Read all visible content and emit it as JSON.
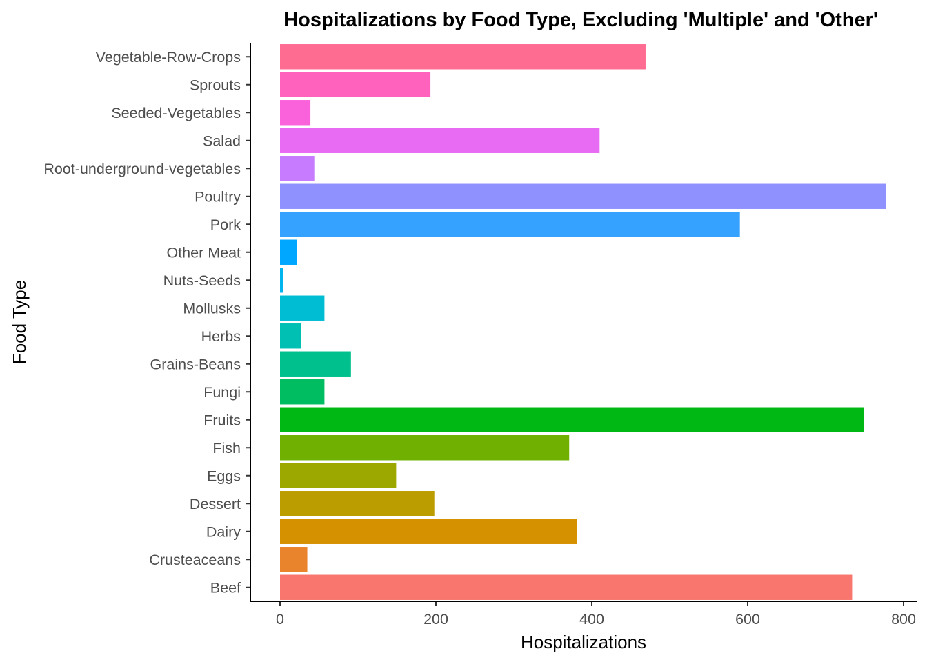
{
  "chart_data": {
    "type": "bar",
    "orientation": "horizontal",
    "title": "Hospitalizations by Food Type, Excluding 'Multiple' and 'Other'",
    "xlabel": "Hospitalizations",
    "ylabel": "Food Type",
    "xlim": [
      0,
      800
    ],
    "x_ticks": [
      "0",
      "200",
      "400",
      "600",
      "800"
    ],
    "grid": false,
    "legend": "none",
    "categories": [
      "Beef",
      "Crusteaceans",
      "Dairy",
      "Dessert",
      "Eggs",
      "Fish",
      "Fruits",
      "Fungi",
      "Grains-Beans",
      "Herbs",
      "Mollusks",
      "Nuts-Seeds",
      "Other Meat",
      "Pork",
      "Poultry",
      "Root-underground-vegetables",
      "Salad",
      "Seeded-Vegetables",
      "Sprouts",
      "Vegetable-Row-Crops"
    ],
    "values": [
      734,
      35,
      381,
      198,
      149,
      371,
      749,
      57,
      91,
      27,
      57,
      4,
      22,
      590,
      777,
      44,
      410,
      39,
      193,
      469
    ],
    "colors": [
      "#F8766D",
      "#E9842C",
      "#D69100",
      "#BC9D00",
      "#9CA700",
      "#6FB000",
      "#00B813",
      "#00BD61",
      "#00C08E",
      "#00C0B4",
      "#00BDD4",
      "#00B5EE",
      "#00A7FF",
      "#35A2FF",
      "#8F91FF",
      "#C77CFF",
      "#E76BF3",
      "#FA62DB",
      "#FF62BC",
      "#FF6C91"
    ]
  }
}
